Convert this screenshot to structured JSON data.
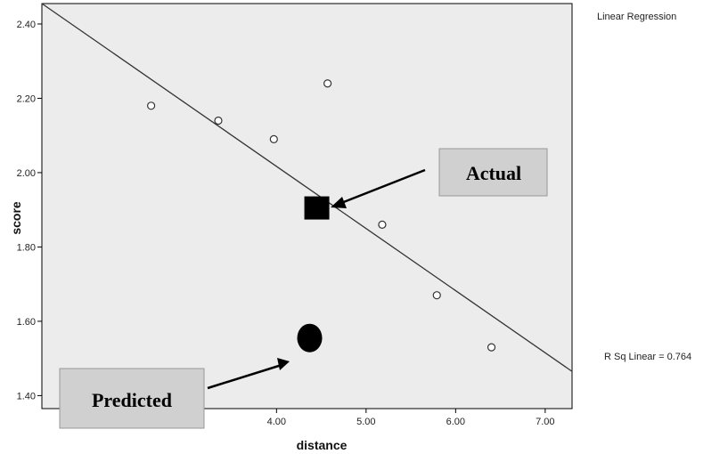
{
  "chart_data": {
    "type": "scatter",
    "title": "",
    "xlabel": "distance",
    "ylabel": "score",
    "xlim": [
      1.38,
      7.3
    ],
    "ylim": [
      1.365,
      2.455
    ],
    "x_ticks": [
      "4.00",
      "5.00",
      "6.00",
      "7.00"
    ],
    "y_ticks": [
      "1.40",
      "1.60",
      "1.80",
      "2.00",
      "2.20",
      "2.40"
    ],
    "points": [
      {
        "x": 2.6,
        "y": 2.18
      },
      {
        "x": 3.35,
        "y": 2.14
      },
      {
        "x": 3.97,
        "y": 2.09
      },
      {
        "x": 4.57,
        "y": 2.24
      },
      {
        "x": 5.18,
        "y": 1.86
      },
      {
        "x": 5.79,
        "y": 1.67
      },
      {
        "x": 6.4,
        "y": 1.53
      }
    ],
    "fit_line": {
      "x1": 1.38,
      "y1": 2.455,
      "x2": 7.3,
      "y2": 1.465
    },
    "fit_label": "Linear Regression",
    "r_squared_label": "R Sq Linear = 0.764",
    "grid": false,
    "plot_background": "#ececec",
    "annotations": {
      "actual": {
        "label": "Actual",
        "x": 4.45,
        "y": 1.905
      },
      "predicted": {
        "label": "Predicted",
        "x": 4.37,
        "y": 1.555
      }
    }
  }
}
